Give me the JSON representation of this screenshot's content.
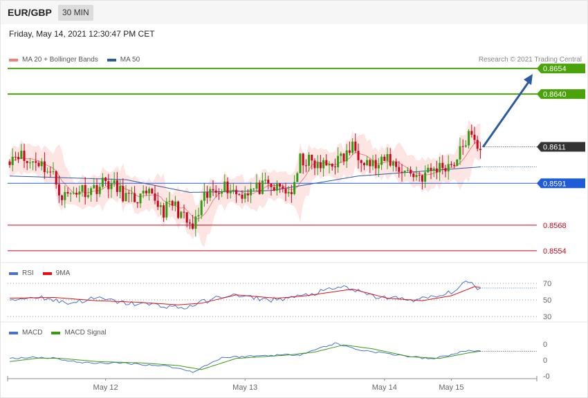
{
  "header": {
    "symbol": "EUR/GBP",
    "timeframe": "30 MIN",
    "datetime": "Friday, May 14, 2021 12:30:47 PM CET"
  },
  "legend_main": [
    {
      "label": "MA 20 + Bollinger Bands",
      "color": "#f08080"
    },
    {
      "label": "MA 50",
      "color": "#2c5aa0"
    }
  ],
  "credit": "Research © 2021 Trading Central",
  "legend_rsi": [
    {
      "label": "RSI",
      "color": "#4a6fd1"
    },
    {
      "label": "9MA",
      "color": "#e01010"
    }
  ],
  "legend_macd": [
    {
      "label": "MACD",
      "color": "#4a6fd1"
    },
    {
      "label": "MACD Signal",
      "color": "#3a9a10"
    }
  ],
  "chart_data": [
    {
      "type": "candlestick",
      "panel": "price",
      "colors": {
        "up": "#2e9e10",
        "down": "#d0021b",
        "target_line": "#4aa30b",
        "pivot": "#1f5bd6",
        "support": "#d0021b",
        "current": "#333333",
        "arrow": "#2c5aa0"
      },
      "y_range": [
        0.8549,
        0.8659
      ],
      "key_levels": [
        {
          "label": "0.8654",
          "value": 0.8654,
          "kind": "target"
        },
        {
          "label": "0.8640",
          "value": 0.864,
          "kind": "target"
        },
        {
          "label": "0.8611",
          "value": 0.8611,
          "kind": "current"
        },
        {
          "label": "0.8591",
          "value": 0.8591,
          "kind": "pivot"
        },
        {
          "label": "0.8568",
          "value": 0.8568,
          "kind": "support"
        },
        {
          "label": "0.8554",
          "value": 0.8554,
          "kind": "support"
        }
      ],
      "forecast_arrow": {
        "from": 0.8611,
        "to": 0.8651
      },
      "anchors": [
        [
          0,
          0.8605
        ],
        [
          3,
          0.8608
        ],
        [
          6,
          0.8602
        ],
        [
          9,
          0.8604
        ],
        [
          12,
          0.86
        ],
        [
          15,
          0.8595
        ],
        [
          18,
          0.8584
        ],
        [
          21,
          0.8585
        ],
        [
          24,
          0.8588
        ],
        [
          27,
          0.8587
        ],
        [
          30,
          0.8589
        ],
        [
          33,
          0.8592
        ],
        [
          36,
          0.8589
        ],
        [
          39,
          0.8585
        ],
        [
          42,
          0.8582
        ],
        [
          45,
          0.8583
        ],
        [
          48,
          0.8584
        ],
        [
          50,
          0.8582
        ],
        [
          53,
          0.8576
        ],
        [
          56,
          0.858
        ],
        [
          59,
          0.8574
        ],
        [
          61,
          0.8569
        ],
        [
          63,
          0.8566
        ],
        [
          65,
          0.8574
        ],
        [
          67,
          0.8582
        ],
        [
          70,
          0.8587
        ],
        [
          73,
          0.859
        ],
        [
          76,
          0.8588
        ],
        [
          79,
          0.8585
        ],
        [
          82,
          0.8587
        ],
        [
          85,
          0.8588
        ],
        [
          88,
          0.8589
        ],
        [
          91,
          0.8588
        ],
        [
          94,
          0.8588
        ],
        [
          96,
          0.8586
        ],
        [
          98,
          0.8588
        ],
        [
          100,
          0.8604
        ],
        [
          103,
          0.8603
        ],
        [
          106,
          0.86
        ],
        [
          109,
          0.8601
        ],
        [
          112,
          0.8603
        ],
        [
          115,
          0.8605
        ],
        [
          118,
          0.8611
        ],
        [
          121,
          0.8606
        ],
        [
          124,
          0.8602
        ],
        [
          127,
          0.86
        ],
        [
          130,
          0.8605
        ],
        [
          133,
          0.86
        ],
        [
          136,
          0.8598
        ],
        [
          139,
          0.8596
        ],
        [
          142,
          0.8595
        ],
        [
          145,
          0.8598
        ],
        [
          148,
          0.86
        ],
        [
          151,
          0.8601
        ],
        [
          154,
          0.8604
        ],
        [
          156,
          0.8612
        ],
        [
          158,
          0.8617
        ],
        [
          160,
          0.8613
        ],
        [
          162,
          0.8611
        ]
      ],
      "ma20_band_width": 0.0006,
      "ma50_anchors": [
        [
          0,
          0.8595
        ],
        [
          40,
          0.8593
        ],
        [
          62,
          0.8586
        ],
        [
          90,
          0.8587
        ],
        [
          120,
          0.8595
        ],
        [
          162,
          0.86
        ]
      ]
    },
    {
      "type": "line",
      "panel": "rsi",
      "y_range": [
        25,
        75
      ],
      "levels": [
        70,
        50,
        30
      ],
      "level_labels": [
        "70",
        "50",
        "30"
      ],
      "series": [
        {
          "name": "RSI",
          "anchors": [
            [
              0,
              50
            ],
            [
              10,
              54
            ],
            [
              20,
              46
            ],
            [
              30,
              52
            ],
            [
              40,
              46
            ],
            [
              50,
              44
            ],
            [
              60,
              40
            ],
            [
              65,
              46
            ],
            [
              75,
              56
            ],
            [
              90,
              50
            ],
            [
              100,
              54
            ],
            [
              115,
              66
            ],
            [
              125,
              54
            ],
            [
              140,
              50
            ],
            [
              150,
              56
            ],
            [
              158,
              72
            ],
            [
              162,
              63
            ]
          ]
        },
        {
          "name": "9MA",
          "anchors": [
            [
              0,
              52
            ],
            [
              15,
              53
            ],
            [
              30,
              49
            ],
            [
              45,
              47
            ],
            [
              58,
              44
            ],
            [
              66,
              46
            ],
            [
              78,
              56
            ],
            [
              92,
              52
            ],
            [
              102,
              55
            ],
            [
              118,
              63
            ],
            [
              130,
              52
            ],
            [
              142,
              49
            ],
            [
              152,
              55
            ],
            [
              160,
              66
            ],
            [
              162,
              65
            ]
          ]
        }
      ]
    },
    {
      "type": "line",
      "panel": "macd",
      "y_range": [
        -1.1,
        1.1
      ],
      "tick_labels": [
        {
          "label": "0",
          "value": 1
        },
        {
          "label": "0",
          "value": 0
        },
        {
          "label": "-0",
          "value": -1
        }
      ],
      "series": [
        {
          "name": "MACD",
          "anchors": [
            [
              0,
              0.1
            ],
            [
              8,
              0.18
            ],
            [
              15,
              0.12
            ],
            [
              25,
              -0.18
            ],
            [
              40,
              -0.2
            ],
            [
              55,
              -0.4
            ],
            [
              63,
              -0.75
            ],
            [
              73,
              0.15
            ],
            [
              90,
              0.3
            ],
            [
              100,
              0.35
            ],
            [
              112,
              1.05
            ],
            [
              120,
              0.65
            ],
            [
              130,
              0.4
            ],
            [
              145,
              0.05
            ],
            [
              158,
              0.6
            ],
            [
              162,
              0.55
            ]
          ]
        },
        {
          "name": "MACD Signal",
          "anchors": [
            [
              0,
              -0.1
            ],
            [
              10,
              0.12
            ],
            [
              18,
              0.1
            ],
            [
              30,
              -0.1
            ],
            [
              45,
              -0.18
            ],
            [
              58,
              -0.35
            ],
            [
              66,
              -0.6
            ],
            [
              78,
              0.1
            ],
            [
              95,
              0.3
            ],
            [
              105,
              0.5
            ],
            [
              115,
              0.95
            ],
            [
              125,
              0.7
            ],
            [
              138,
              0.2
            ],
            [
              148,
              0.1
            ],
            [
              158,
              0.45
            ],
            [
              162,
              0.55
            ]
          ]
        }
      ]
    }
  ],
  "x_axis": {
    "labels": [
      {
        "label": "May 12",
        "index": 33
      },
      {
        "label": "May 13",
        "index": 81
      },
      {
        "label": "May 14",
        "index": 129
      },
      {
        "label": "May 15",
        "index": 152
      }
    ]
  }
}
